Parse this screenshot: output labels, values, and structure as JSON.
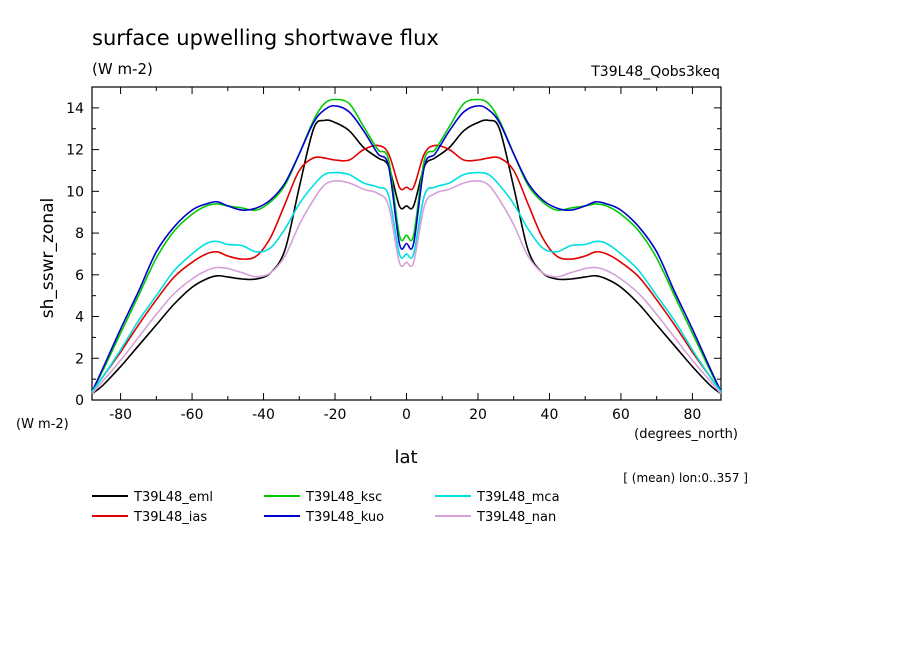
{
  "chart_data": {
    "type": "line",
    "title": "surface upwelling shortwave flux",
    "units": "(W m-2)",
    "experiment": "T39L48_Qobs3keq",
    "ylabel": "sh_sswr_zonal",
    "y_unit_label": "(W m-2)",
    "xlabel": "lat",
    "x_unit_label": "(degrees_north)",
    "footnote": "[ (mean) lon:0..357 ]",
    "xlim": [
      -88,
      88
    ],
    "ylim": [
      0,
      15
    ],
    "xticks": [
      -80,
      -60,
      -40,
      -20,
      0,
      20,
      40,
      60,
      80
    ],
    "xtick_labels": [
      "-80",
      "-60",
      "-40",
      "-20",
      "0",
      "20",
      "40",
      "60",
      "80"
    ],
    "yticks": [
      0,
      2,
      4,
      6,
      8,
      10,
      12,
      14
    ],
    "ytick_labels": [
      "0",
      "2",
      "4",
      "6",
      "8",
      "10",
      "12",
      "14"
    ],
    "grid": false,
    "legend_position": "bottom",
    "lat_half": [
      0,
      2,
      5,
      8,
      12,
      16,
      20,
      23,
      26,
      30,
      34,
      38,
      42,
      46,
      50,
      53,
      56,
      60,
      65,
      70,
      75,
      80,
      85,
      88
    ],
    "series": [
      {
        "name": "T39L48_eml",
        "color": "#000000",
        "values_half": [
          9.3,
          9.3,
          11.2,
          11.6,
          12.1,
          12.9,
          13.3,
          13.4,
          13.0,
          10.2,
          7.2,
          6.1,
          5.8,
          5.8,
          5.9,
          5.95,
          5.8,
          5.4,
          4.6,
          3.6,
          2.6,
          1.6,
          0.7,
          0.3
        ]
      },
      {
        "name": "T39L48_ias",
        "color": "#e00000",
        "values_half": [
          10.2,
          10.2,
          11.8,
          12.2,
          12.0,
          11.5,
          11.5,
          11.6,
          11.6,
          11.0,
          9.4,
          7.8,
          6.9,
          6.75,
          6.9,
          7.1,
          7.0,
          6.6,
          5.9,
          4.8,
          3.6,
          2.3,
          1.1,
          0.4
        ]
      },
      {
        "name": "T39L48_ksc",
        "color": "#00cc00",
        "values_half": [
          7.9,
          7.9,
          11.5,
          12.0,
          13.1,
          14.2,
          14.4,
          14.2,
          13.4,
          11.8,
          10.3,
          9.5,
          9.1,
          9.2,
          9.3,
          9.4,
          9.3,
          8.9,
          8.1,
          6.8,
          5.0,
          3.2,
          1.4,
          0.4
        ]
      },
      {
        "name": "T39L48_kuo",
        "color": "#0000cc",
        "values_half": [
          7.5,
          7.5,
          11.2,
          11.8,
          12.9,
          13.8,
          14.1,
          13.9,
          13.3,
          11.8,
          10.4,
          9.6,
          9.2,
          9.1,
          9.3,
          9.5,
          9.4,
          9.1,
          8.3,
          7.1,
          5.2,
          3.4,
          1.5,
          0.4
        ]
      },
      {
        "name": "T39L48_mca",
        "color": "#00e0e0",
        "values_half": [
          7.0,
          7.0,
          9.8,
          10.2,
          10.4,
          10.8,
          10.9,
          10.8,
          10.3,
          9.4,
          8.2,
          7.3,
          7.1,
          7.4,
          7.45,
          7.6,
          7.5,
          7.0,
          6.2,
          5.0,
          3.8,
          2.4,
          1.1,
          0.4
        ]
      },
      {
        "name": "T39L48_nan",
        "color": "#d8a0d8",
        "values_half": [
          6.6,
          6.6,
          9.3,
          9.9,
          10.1,
          10.4,
          10.5,
          10.3,
          9.6,
          8.4,
          6.9,
          6.1,
          5.9,
          6.1,
          6.3,
          6.35,
          6.2,
          5.8,
          5.1,
          4.1,
          3.0,
          1.9,
          0.9,
          0.3
        ]
      }
    ]
  }
}
